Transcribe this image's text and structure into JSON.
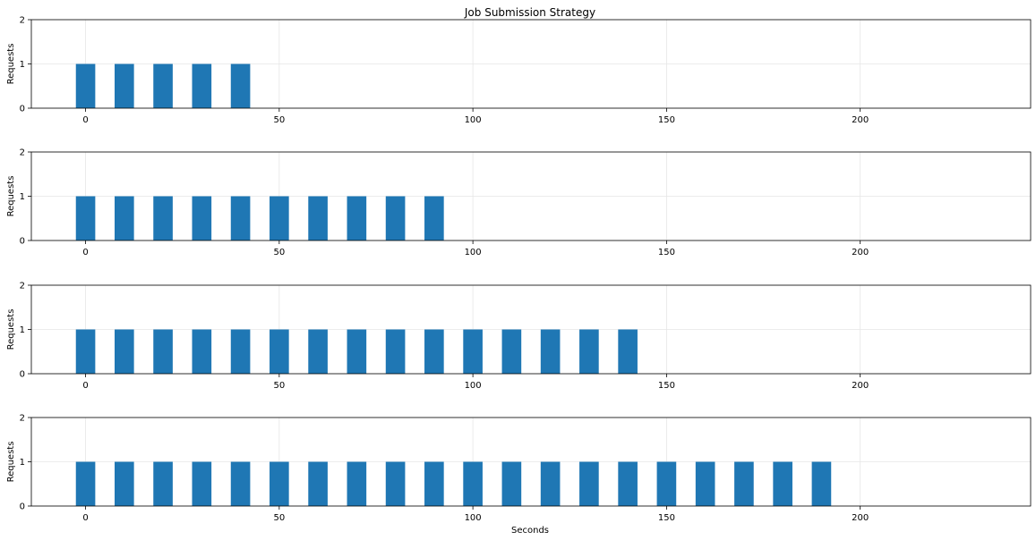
{
  "chart_data": {
    "type": "bar",
    "title": "Job Submission Strategy",
    "xlabel": "Seconds",
    "ylabel": "Requests",
    "xlim": [
      -14,
      244
    ],
    "ylim": [
      0,
      2
    ],
    "xticks": [
      0,
      50,
      100,
      150,
      200
    ],
    "yticks": [
      0,
      1,
      2
    ],
    "grid": true,
    "bar_color": "#1f77b4",
    "bar_width": 5,
    "panels": [
      {
        "x": [
          0,
          10,
          20,
          30,
          40
        ],
        "values": [
          1,
          1,
          1,
          1,
          1
        ]
      },
      {
        "x": [
          0,
          10,
          20,
          30,
          40,
          50,
          60,
          70,
          80,
          90
        ],
        "values": [
          1,
          1,
          1,
          1,
          1,
          1,
          1,
          1,
          1,
          1
        ]
      },
      {
        "x": [
          0,
          10,
          20,
          30,
          40,
          50,
          60,
          70,
          80,
          90,
          100,
          110,
          120,
          130,
          140
        ],
        "values": [
          1,
          1,
          1,
          1,
          1,
          1,
          1,
          1,
          1,
          1,
          1,
          1,
          1,
          1,
          1
        ]
      },
      {
        "x": [
          0,
          10,
          20,
          30,
          40,
          50,
          60,
          70,
          80,
          90,
          100,
          110,
          120,
          130,
          140,
          150,
          160,
          170,
          180,
          190
        ],
        "values": [
          1,
          1,
          1,
          1,
          1,
          1,
          1,
          1,
          1,
          1,
          1,
          1,
          1,
          1,
          1,
          1,
          1,
          1,
          1,
          1
        ]
      }
    ]
  }
}
